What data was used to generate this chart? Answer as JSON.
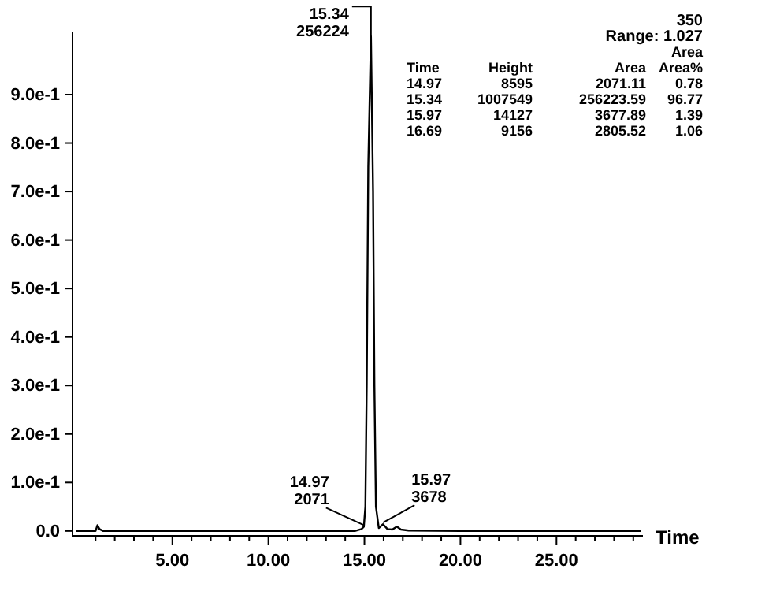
{
  "chart_data": {
    "type": "line",
    "xlabel": "Time",
    "x": [
      0,
      1.0,
      1.1,
      1.2,
      1.4,
      5,
      10,
      14.5,
      14.85,
      14.97,
      15.05,
      15.12,
      15.2,
      15.34,
      15.45,
      15.52,
      15.6,
      15.75,
      15.97,
      16.2,
      16.45,
      16.69,
      16.9,
      17.3,
      20,
      25,
      29.4
    ],
    "series": [
      {
        "color": "#000000",
        "values": [
          0,
          0,
          0.012,
          0.004,
          0,
          0,
          0,
          0,
          0.004,
          0.009,
          0.05,
          0.3,
          0.75,
          1.02,
          0.7,
          0.3,
          0.05,
          0.006,
          0.014,
          0.004,
          0.003,
          0.009,
          0.003,
          0.001,
          0,
          0,
          0
        ]
      }
    ],
    "xlim": [
      -0.2,
      29.5
    ],
    "ylim": [
      -0.01,
      1.03
    ],
    "xticks": [
      {
        "value": 1,
        "label": null
      },
      {
        "value": 2,
        "label": null
      },
      {
        "value": 3,
        "label": null
      },
      {
        "value": 4,
        "label": null
      },
      {
        "value": 5,
        "label": "5.00"
      },
      {
        "value": 6,
        "label": null
      },
      {
        "value": 7,
        "label": null
      },
      {
        "value": 8,
        "label": null
      },
      {
        "value": 9,
        "label": null
      },
      {
        "value": 10,
        "label": "10.00"
      },
      {
        "value": 11,
        "label": null
      },
      {
        "value": 12,
        "label": null
      },
      {
        "value": 13,
        "label": null
      },
      {
        "value": 14,
        "label": null
      },
      {
        "value": 15,
        "label": "15.00"
      },
      {
        "value": 16,
        "label": null
      },
      {
        "value": 17,
        "label": null
      },
      {
        "value": 18,
        "label": null
      },
      {
        "value": 19,
        "label": null
      },
      {
        "value": 20,
        "label": "20.00"
      },
      {
        "value": 21,
        "label": null
      },
      {
        "value": 22,
        "label": null
      },
      {
        "value": 23,
        "label": null
      },
      {
        "value": 24,
        "label": null
      },
      {
        "value": 25,
        "label": "25.00"
      },
      {
        "value": 26,
        "label": null
      },
      {
        "value": 27,
        "label": null
      },
      {
        "value": 28,
        "label": null
      },
      {
        "value": 29,
        "label": null
      }
    ],
    "yticks": [
      {
        "value": 0,
        "label": "0.0"
      },
      {
        "value": 0.1,
        "label": "1.0e-1"
      },
      {
        "value": 0.2,
        "label": "2.0e-1"
      },
      {
        "value": 0.3,
        "label": "3.0e-1"
      },
      {
        "value": 0.4,
        "label": "4.0e-1"
      },
      {
        "value": 0.5,
        "label": "5.0e-1"
      },
      {
        "value": 0.6,
        "label": "6.0e-1"
      },
      {
        "value": 0.7,
        "label": "7.0e-1"
      },
      {
        "value": 0.8,
        "label": "8.0e-1"
      },
      {
        "value": 0.9,
        "label": "9.0e-1"
      }
    ],
    "grid": false,
    "marker": "none",
    "line_style": "solid",
    "annotations": [
      {
        "text": "15.34\n256224",
        "x": 15.34,
        "y": 1.02
      },
      {
        "text": "14.97\n2071",
        "x": 14.97,
        "y": 0.009
      },
      {
        "text": "15.97\n3678",
        "x": 15.97,
        "y": 0.014
      },
      "350",
      "Range: 1.027",
      "Time\tHeight\tArea\tArea\nArea%",
      "14.97\t8595\t2071.11\t0.78",
      "15.34\t1007549\t256223.59\t96.77",
      "15.97\t14127\t3677.89\t1.39",
      "16.69\t9156\t2805.52\t1.06"
    ]
  }
}
